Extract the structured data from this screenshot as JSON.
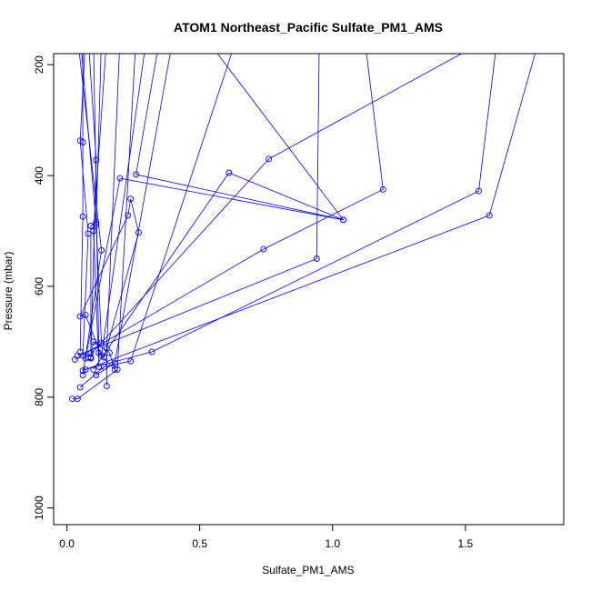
{
  "chart_data": {
    "type": "line",
    "title": "ATOM1 Northeast_Pacific Sulfate_PM1_AMS",
    "xlabel": "Sulfate_PM1_AMS",
    "ylabel": "Pressure (mbar)",
    "xlim": [
      -0.05,
      1.87
    ],
    "ylim": [
      1030,
      180
    ],
    "y_reversed": true,
    "xticks": [
      0.0,
      0.5,
      1.0,
      1.5
    ],
    "xtick_labels": [
      "0.0",
      "0.5",
      "1.0",
      "1.5"
    ],
    "yticks": [
      200,
      400,
      600,
      800,
      1000
    ],
    "ytick_labels": [
      "200",
      "400",
      "600",
      "800",
      "1000"
    ],
    "grid": false,
    "colors": {
      "series": "#0000ff",
      "axis": "#000000",
      "background": "#ffffff"
    },
    "series": [
      {
        "points": [
          [
            0.02,
            803
          ],
          [
            0.04,
            803
          ],
          [
            0.19,
            750
          ],
          [
            0.26,
            150
          ]
        ]
      },
      {
        "points": [
          [
            0.05,
            782
          ],
          [
            0.14,
            745
          ],
          [
            0.24,
            735
          ],
          [
            0.64,
            150
          ]
        ]
      },
      {
        "points": [
          [
            0.11,
            760
          ],
          [
            0.18,
            738
          ],
          [
            0.4,
            150
          ]
        ]
      },
      {
        "points": [
          [
            0.15,
            780
          ],
          [
            0.15,
            712
          ],
          [
            0.2,
            150
          ]
        ]
      },
      {
        "points": [
          [
            0.06,
            760
          ],
          [
            0.13,
            535
          ],
          [
            0.04,
            150
          ]
        ]
      },
      {
        "points": [
          [
            0.07,
            750
          ],
          [
            0.32,
            718
          ],
          [
            1.55,
            428
          ],
          [
            1.62,
            150
          ]
        ]
      },
      {
        "points": [
          [
            0.06,
            752
          ],
          [
            1.59,
            472
          ],
          [
            1.78,
            150
          ]
        ]
      },
      {
        "points": [
          [
            0.04,
            725
          ],
          [
            0.94,
            550
          ],
          [
            0.95,
            150
          ]
        ]
      },
      {
        "points": [
          [
            0.03,
            732
          ],
          [
            0.74,
            533
          ],
          [
            1.19,
            425
          ],
          [
            1.12,
            150
          ]
        ]
      },
      {
        "points": [
          [
            0.08,
            728
          ],
          [
            0.76,
            370
          ],
          [
            1.6,
            150
          ]
        ]
      },
      {
        "points": [
          [
            0.1,
            750
          ],
          [
            0.61,
            395
          ],
          [
            1.04,
            480
          ],
          [
            0.26,
            398
          ],
          [
            0.35,
            150
          ]
        ]
      },
      {
        "points": [
          [
            0.07,
            730
          ],
          [
            0.2,
            405
          ],
          [
            1.04,
            480
          ],
          [
            0.52,
            150
          ]
        ]
      },
      {
        "points": [
          [
            0.14,
            728
          ],
          [
            0.27,
            503
          ],
          [
            0.24,
            442
          ],
          [
            0.23,
            472
          ],
          [
            0.05,
            654
          ],
          [
            0.07,
            652
          ],
          [
            0.13,
            725
          ],
          [
            0.3,
            150
          ]
        ]
      },
      {
        "points": [
          [
            0.09,
            728
          ],
          [
            0.11,
            372
          ],
          [
            0.08,
            150
          ]
        ]
      },
      {
        "points": [
          [
            0.09,
            720
          ],
          [
            0.09,
            491
          ],
          [
            0.11,
            484
          ],
          [
            0.13,
            150
          ]
        ]
      },
      {
        "points": [
          [
            0.05,
            718
          ],
          [
            0.06,
            474
          ],
          [
            0.06,
            340
          ],
          [
            0.06,
            150
          ]
        ]
      },
      {
        "points": [
          [
            0.1,
            700
          ],
          [
            0.13,
            702
          ],
          [
            0.11,
            488
          ],
          [
            0.05,
            150
          ]
        ]
      },
      {
        "points": [
          [
            0.06,
            725
          ],
          [
            0.08,
            505
          ],
          [
            0.05,
            337
          ],
          [
            0.07,
            150
          ]
        ]
      },
      {
        "points": [
          [
            0.12,
            745
          ],
          [
            0.1,
            500
          ],
          [
            0.15,
            150
          ]
        ]
      },
      {
        "points": [
          [
            0.09,
            730
          ],
          [
            0.1,
            700
          ],
          [
            0.16,
            720
          ],
          [
            0.18,
            750
          ],
          [
            0.12,
            720
          ],
          [
            0.1,
            150
          ]
        ]
      }
    ]
  }
}
